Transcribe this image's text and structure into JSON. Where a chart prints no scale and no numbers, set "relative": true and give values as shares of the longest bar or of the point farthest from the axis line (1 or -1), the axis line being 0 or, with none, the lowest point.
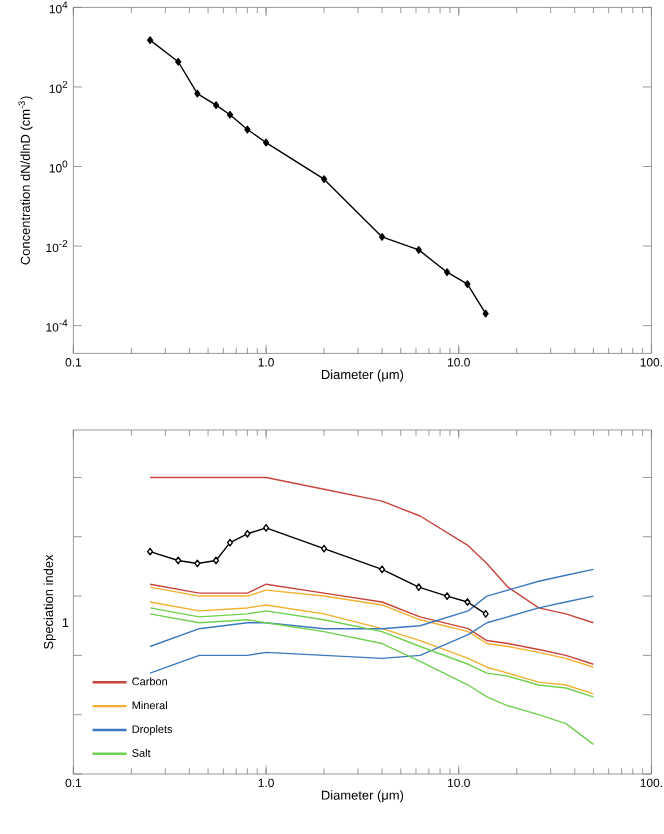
{
  "chart_data": [
    {
      "type": "line",
      "xlabel": "Diameter (μm)",
      "ylabel": "Concentration dN/dlnD (cm$^{-3}$)",
      "log": "xy",
      "xlim": [
        0.1,
        100
      ],
      "ylim": [
        2e-05,
        10000
      ],
      "xticks": [
        {
          "value": 0.1,
          "label": "0.1"
        },
        {
          "value": 1,
          "label": "1.0"
        },
        {
          "value": 10,
          "label": "10.0"
        },
        {
          "value": 100,
          "label": "100."
        }
      ],
      "yticks": [
        {
          "value": 0.0001,
          "label": "10$^{-4}$"
        },
        {
          "value": 0.01,
          "label": "10$^{-2}$"
        },
        {
          "value": 1,
          "label": "10$^{0}$"
        },
        {
          "value": 100,
          "label": "10$^{2}$"
        },
        {
          "value": 10000,
          "label": "10$^{4}$"
        }
      ],
      "marker": "diamond",
      "legend": false,
      "grid": false,
      "series": [
        {
          "color": "#000000",
          "x": [
            0.25,
            0.35,
            0.44,
            0.55,
            0.65,
            0.8,
            1.0,
            2.0,
            4.0,
            6.2,
            8.7,
            11.1,
            13.8
          ],
          "values": [
            1500,
            430,
            68,
            35,
            20,
            8.5,
            4,
            0.48,
            0.017,
            0.008,
            0.0022,
            0.0011,
            0.0002
          ]
        }
      ]
    },
    {
      "type": "line",
      "xlabel": "Diameter (μm)",
      "ylabel": "Speciation index",
      "log": "x",
      "relative": true,
      "xlim": [
        0.1,
        100
      ],
      "xticks": [
        {
          "value": 0.1,
          "label": "0.1"
        },
        {
          "value": 1,
          "label": "1.0"
        },
        {
          "value": 10,
          "label": "10.0"
        },
        {
          "value": 100,
          "label": "100."
        }
      ],
      "annotations": [
        "1"
      ],
      "marker": "none",
      "legend": "bottom left",
      "grid": false,
      "x": [
        0.25,
        0.45,
        0.8,
        1.0,
        2.0,
        4.0,
        6.3,
        11.2,
        14,
        18,
        26,
        36,
        50
      ],
      "series": [
        {
          "name": "Carbon",
          "color": "#c8443c",
          "values": [
            1,
            1,
            1,
            1,
            0.96,
            0.92,
            0.87,
            0.77,
            0.71,
            0.63,
            0.56,
            0.54,
            0.51
          ]
        },
        {
          "color": "#c8443c",
          "values": [
            0.64,
            0.61,
            0.61,
            0.64,
            0.61,
            0.58,
            0.53,
            0.49,
            0.45,
            0.44,
            0.42,
            0.4,
            0.37
          ]
        },
        {
          "name": "Mineral",
          "color": "#f0b030",
          "values": [
            0.63,
            0.6,
            0.6,
            0.62,
            0.6,
            0.57,
            0.52,
            0.48,
            0.44,
            0.43,
            0.41,
            0.39,
            0.36
          ]
        },
        {
          "color": "#f0b030",
          "values": [
            0.58,
            0.55,
            0.56,
            0.57,
            0.54,
            0.49,
            0.45,
            0.39,
            0.36,
            0.34,
            0.31,
            0.3,
            0.27
          ]
        },
        {
          "name": "Droplets",
          "color": "#3a78c0",
          "values": [
            0.43,
            0.49,
            0.51,
            0.51,
            0.49,
            0.49,
            0.5,
            0.55,
            0.6,
            0.62,
            0.65,
            0.67,
            0.69
          ]
        },
        {
          "color": "#3a78c0",
          "values": [
            0.34,
            0.4,
            0.4,
            0.41,
            0.4,
            0.39,
            0.4,
            0.47,
            0.51,
            0.53,
            0.56,
            0.58,
            0.6
          ]
        },
        {
          "name": "Salt",
          "color": "#70d050",
          "values": [
            0.56,
            0.53,
            0.54,
            0.55,
            0.52,
            0.48,
            0.43,
            0.37,
            0.34,
            0.33,
            0.3,
            0.29,
            0.26
          ]
        },
        {
          "color": "#70d050",
          "values": [
            0.54,
            0.51,
            0.52,
            0.51,
            0.48,
            0.44,
            0.38,
            0.3,
            0.26,
            0.23,
            0.2,
            0.17,
            0.1
          ]
        },
        {
          "color": "#000000",
          "marker": "diamond",
          "x": [
            0.25,
            0.35,
            0.44,
            0.55,
            0.65,
            0.8,
            1.0,
            2.0,
            4.0,
            6.2,
            8.7,
            11.1,
            13.8
          ],
          "values": [
            0.75,
            0.72,
            0.71,
            0.72,
            0.78,
            0.81,
            0.83,
            0.76,
            0.69,
            0.63,
            0.6,
            0.58,
            0.54
          ]
        }
      ]
    }
  ]
}
